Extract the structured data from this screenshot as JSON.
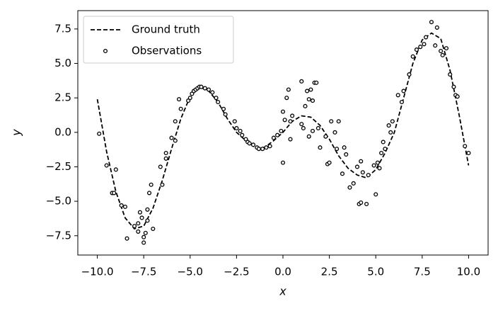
{
  "chart_data": {
    "type": "line",
    "xlabel": "x",
    "ylabel": "y",
    "xlim": [
      -11.05,
      11.05
    ],
    "ylim": [
      -8.9,
      8.83
    ],
    "xticks": [
      {
        "value": -10,
        "label": "−10.0"
      },
      {
        "value": -7.5,
        "label": "−7.5"
      },
      {
        "value": -5,
        "label": "−5.0"
      },
      {
        "value": -2.5,
        "label": "−2.5"
      },
      {
        "value": 0,
        "label": "0.0"
      },
      2.5,
      {
        "value": 5,
        "label": "5.0"
      },
      {
        "value": 7.5,
        "label": "7.5"
      },
      {
        "value": 10,
        "label": "10.0"
      }
    ],
    "yticks": [
      {
        "value": -7.5,
        "label": "−7.5"
      },
      {
        "value": -5,
        "label": "−5.0"
      },
      {
        "value": -2.5,
        "label": "−2.5"
      },
      {
        "value": 0,
        "label": "0.0"
      },
      2.5,
      {
        "value": 5,
        "label": "5.0"
      },
      {
        "value": 7.5,
        "label": "7.5"
      }
    ],
    "legend": "upper left",
    "series": [
      {
        "name": "Ground truth",
        "type": "line",
        "color": "#000000",
        "x": [
          -10,
          -9.5,
          -9,
          -8.5,
          -8,
          -7.5,
          -7,
          -6.5,
          -6,
          -5.5,
          -5,
          -4.5,
          -4,
          -3.5,
          -3,
          -2.5,
          -2,
          -1.5,
          -1,
          -0.5,
          0,
          0.5,
          1,
          1.5,
          2,
          2.5,
          3,
          3.5,
          4,
          4.5,
          5,
          5.5,
          6,
          6.5,
          7,
          7.5,
          8,
          8.5,
          9,
          9.5,
          10
        ],
        "values": [
          2.4,
          -1.4,
          -4.3,
          -6.2,
          -7.0,
          -6.8,
          -5.5,
          -3.5,
          -1.2,
          1.0,
          2.6,
          3.3,
          3.0,
          2.2,
          1.0,
          0.0,
          -0.6,
          -1.1,
          -1.1,
          -0.6,
          0.0,
          0.8,
          1.2,
          1.1,
          0.5,
          -0.5,
          -1.7,
          -2.6,
          -3.1,
          -3.3,
          -2.7,
          -1.5,
          0.0,
          2.5,
          5.0,
          6.7,
          7.2,
          6.8,
          4.5,
          1.2,
          -2.4
        ]
      },
      {
        "name": "Observations",
        "type": "scatter",
        "color": "#000000",
        "x": [
          -9.9,
          -9.5,
          -9.2,
          -9.1,
          -9.0,
          -8.7,
          -8.5,
          -8.4,
          -8.0,
          -7.8,
          -7.8,
          -7.7,
          -7.6,
          -7.5,
          -7.5,
          -7.4,
          -7.3,
          -7.3,
          -7.2,
          -7.1,
          -7.0,
          -6.6,
          -6.5,
          -6.3,
          -6.3,
          -6.0,
          -5.8,
          -5.8,
          -5.6,
          -5.5,
          -5.1,
          -5.0,
          -4.9,
          -4.8,
          -4.7,
          -4.6,
          -4.5,
          -4.4,
          -4.2,
          -4.0,
          -3.8,
          -3.6,
          -3.5,
          -3.2,
          -3.1,
          -2.6,
          -2.5,
          -2.3,
          -2.2,
          -2.0,
          -1.9,
          -1.8,
          -1.6,
          -1.4,
          -1.3,
          -1.1,
          -0.9,
          -0.7,
          -0.5,
          -0.3,
          -0.1,
          0.0,
          0.0,
          0.1,
          0.2,
          0.3,
          0.4,
          0.4,
          0.5,
          1.0,
          1.0,
          1.1,
          1.2,
          1.3,
          1.4,
          1.4,
          1.5,
          1.6,
          1.6,
          1.7,
          1.8,
          1.9,
          2.0,
          2.3,
          2.4,
          2.5,
          2.6,
          2.8,
          2.9,
          3.0,
          3.2,
          3.3,
          3.4,
          3.6,
          3.8,
          4.0,
          4.1,
          4.2,
          4.2,
          4.3,
          4.5,
          4.6,
          4.9,
          5.0,
          5.1,
          5.2,
          5.3,
          5.4,
          5.5,
          5.7,
          5.8,
          5.9,
          6.2,
          6.4,
          6.5,
          6.8,
          7.0,
          7.2,
          7.4,
          7.6,
          7.7,
          8.0,
          8.2,
          8.3,
          8.5,
          8.6,
          8.8,
          9.0,
          9.2,
          9.3,
          9.4,
          9.8,
          10.0
        ],
        "values": [
          -0.1,
          -2.4,
          -4.4,
          -4.4,
          -2.7,
          -5.3,
          -5.4,
          -7.7,
          -6.8,
          -7.2,
          -6.6,
          -5.8,
          -6.2,
          -7.6,
          -8.0,
          -7.3,
          -6.4,
          -5.6,
          -4.4,
          -3.8,
          -7.0,
          -2.5,
          -3.8,
          -1.9,
          -1.5,
          -0.4,
          -0.6,
          0.8,
          2.4,
          1.7,
          2.3,
          2.5,
          2.8,
          3.0,
          3.1,
          3.2,
          3.3,
          3.3,
          3.2,
          3.1,
          2.9,
          2.5,
          2.2,
          1.7,
          1.3,
          0.8,
          0.3,
          0.1,
          -0.2,
          -0.5,
          -0.7,
          -0.8,
          -0.9,
          -1.1,
          -1.2,
          -1.2,
          -1.1,
          -1.0,
          -0.4,
          -0.2,
          0.1,
          -2.2,
          1.5,
          0.9,
          2.5,
          3.1,
          0.8,
          -0.5,
          1.2,
          0.6,
          3.7,
          0.3,
          1.9,
          3.0,
          2.4,
          -0.3,
          3.1,
          2.3,
          0.1,
          3.6,
          3.6,
          0.3,
          -1.1,
          -0.3,
          -2.3,
          -2.2,
          0.8,
          0.0,
          -1.2,
          0.8,
          -3.0,
          -1.1,
          -1.6,
          -4.0,
          -3.7,
          -2.5,
          -5.2,
          -2.1,
          -5.1,
          -2.9,
          -5.2,
          -3.1,
          -2.4,
          -4.5,
          -2.2,
          -2.6,
          -1.5,
          -0.7,
          -1.2,
          0.5,
          0.0,
          0.8,
          2.7,
          2.2,
          3.0,
          4.2,
          5.5,
          6.0,
          6.2,
          6.4,
          6.9,
          8.0,
          6.3,
          7.6,
          5.9,
          5.6,
          6.1,
          4.2,
          3.3,
          2.7,
          2.6,
          -1.0,
          -1.5
        ]
      }
    ]
  }
}
